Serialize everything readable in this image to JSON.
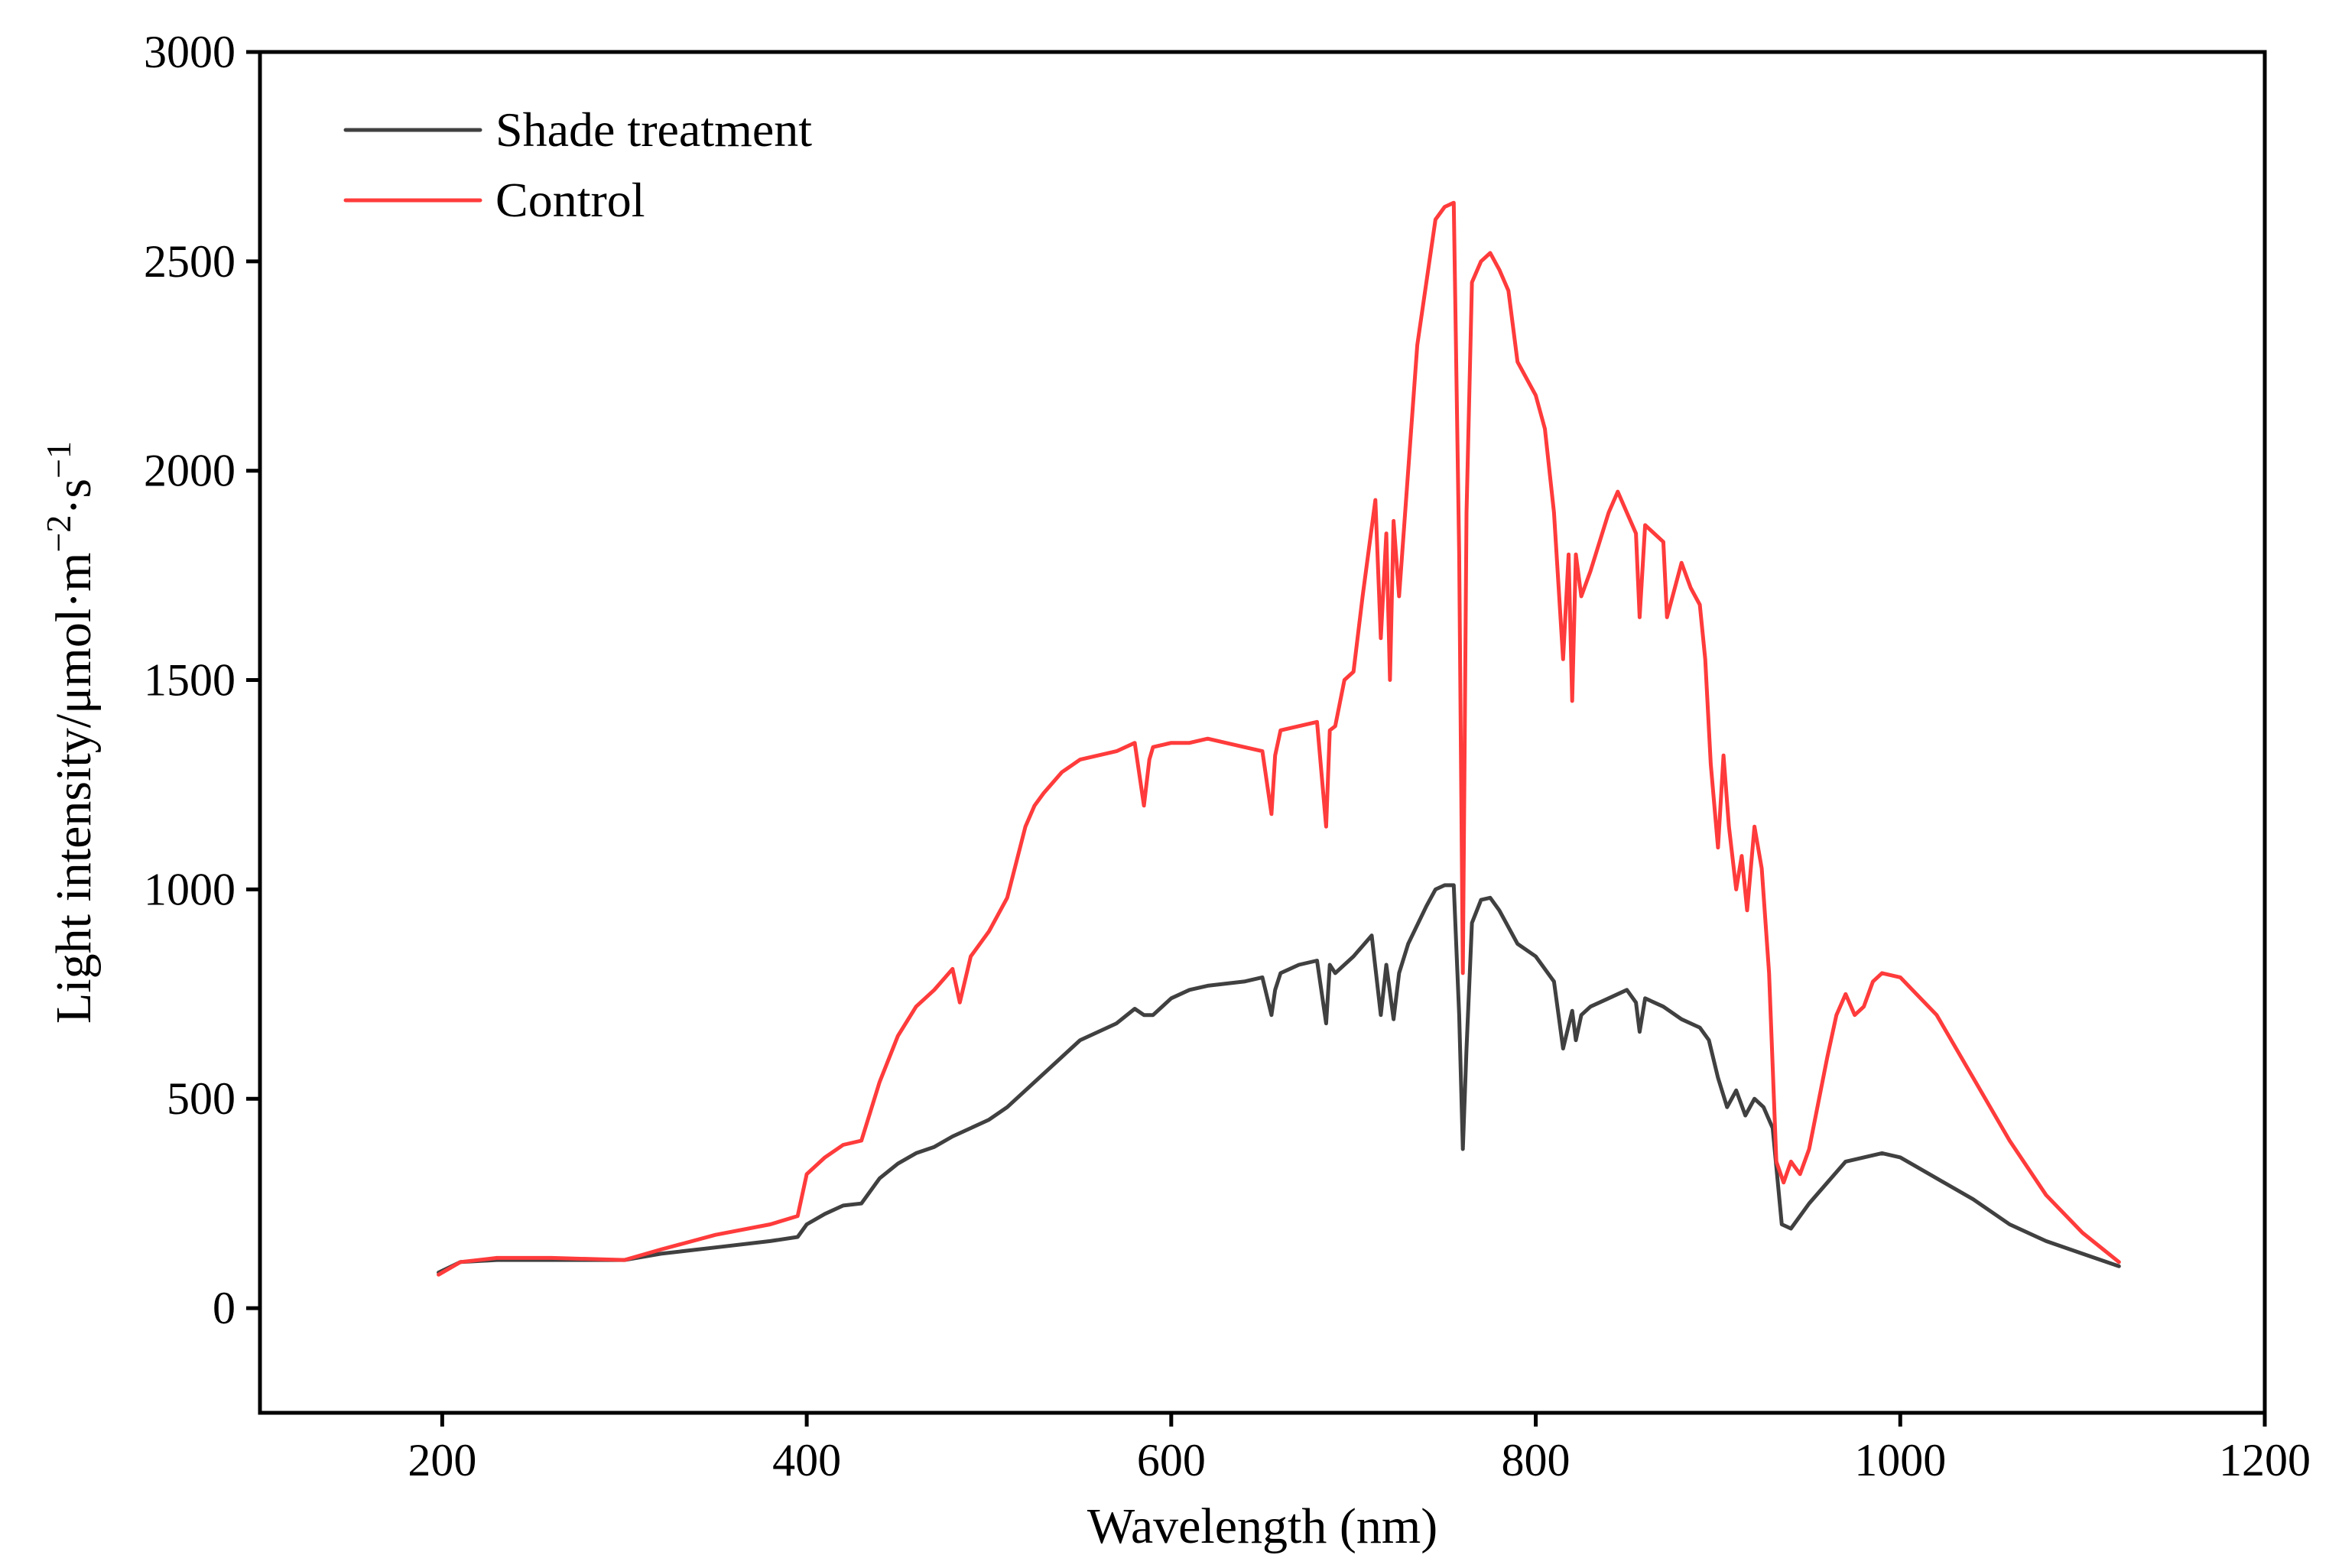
{
  "chart_data": {
    "type": "line",
    "title": "",
    "xlabel": "Wavelength (nm)",
    "ylabel": "Light intensity/μmol·m",
    "ylabel_exp1": "−2",
    "ylabel_mid": "·s",
    "ylabel_exp2": "−1",
    "xlim": [
      100,
      1200
    ],
    "ylim": [
      -250,
      3000
    ],
    "xticks": [
      200,
      400,
      600,
      800,
      1000,
      1200
    ],
    "yticks": [
      0,
      500,
      1000,
      1500,
      2000,
      2500,
      3000
    ],
    "grid": false,
    "legend_position": "top-left",
    "series": [
      {
        "name": "Shade treatment",
        "color": "#404040",
        "x": [
          198,
          210,
          230,
          260,
          300,
          320,
          350,
          380,
          395,
          400,
          410,
          420,
          430,
          440,
          450,
          460,
          470,
          480,
          490,
          500,
          510,
          520,
          530,
          540,
          550,
          560,
          570,
          580,
          585,
          590,
          600,
          610,
          620,
          630,
          640,
          650,
          655,
          657,
          660,
          670,
          680,
          685,
          687,
          690,
          700,
          710,
          715,
          718,
          722,
          725,
          730,
          740,
          745,
          750,
          755,
          758,
          760,
          762,
          765,
          770,
          775,
          780,
          790,
          800,
          810,
          815,
          820,
          822,
          825,
          830,
          840,
          850,
          855,
          857,
          860,
          870,
          880,
          890,
          895,
          900,
          905,
          910,
          915,
          920,
          925,
          930,
          935,
          940,
          950,
          960,
          970,
          980,
          990,
          1000,
          1020,
          1040,
          1060,
          1080,
          1100,
          1120
        ],
        "y": [
          85,
          110,
          115,
          115,
          115,
          130,
          145,
          160,
          170,
          200,
          225,
          245,
          250,
          310,
          345,
          370,
          385,
          410,
          430,
          450,
          480,
          520,
          560,
          600,
          640,
          660,
          680,
          715,
          700,
          700,
          740,
          760,
          770,
          775,
          780,
          790,
          700,
          760,
          800,
          820,
          830,
          680,
          820,
          800,
          840,
          890,
          700,
          820,
          690,
          800,
          870,
          960,
          1000,
          1010,
          1010,
          700,
          380,
          620,
          920,
          975,
          980,
          950,
          870,
          840,
          780,
          620,
          710,
          640,
          700,
          720,
          740,
          760,
          730,
          660,
          740,
          720,
          690,
          670,
          640,
          550,
          480,
          520,
          460,
          500,
          480,
          430,
          200,
          190,
          250,
          300,
          350,
          360,
          370,
          360,
          310,
          260,
          200,
          160,
          130,
          100
        ]
      },
      {
        "name": "Control",
        "color": "#ff3b3b",
        "x": [
          198,
          210,
          230,
          260,
          300,
          320,
          350,
          380,
          395,
          400,
          410,
          420,
          430,
          440,
          450,
          460,
          470,
          480,
          484,
          490,
          500,
          510,
          520,
          525,
          530,
          540,
          550,
          560,
          570,
          580,
          585,
          588,
          590,
          600,
          610,
          620,
          630,
          640,
          650,
          655,
          657,
          660,
          670,
          680,
          685,
          687,
          690,
          695,
          700,
          705,
          712,
          715,
          718,
          720,
          722,
          725,
          730,
          735,
          740,
          745,
          750,
          755,
          758,
          760,
          762,
          765,
          770,
          775,
          780,
          785,
          790,
          800,
          805,
          810,
          815,
          818,
          820,
          822,
          825,
          830,
          840,
          845,
          850,
          855,
          857,
          860,
          870,
          872,
          880,
          885,
          890,
          893,
          896,
          900,
          903,
          906,
          910,
          913,
          916,
          920,
          924,
          928,
          932,
          936,
          940,
          945,
          950,
          960,
          965,
          970,
          975,
          980,
          985,
          990,
          1000,
          1020,
          1040,
          1060,
          1080,
          1100,
          1120
        ],
        "y": [
          80,
          110,
          120,
          120,
          115,
          140,
          175,
          200,
          220,
          320,
          360,
          390,
          400,
          540,
          650,
          720,
          760,
          810,
          730,
          840,
          900,
          980,
          1150,
          1200,
          1230,
          1280,
          1310,
          1320,
          1330,
          1350,
          1200,
          1310,
          1340,
          1350,
          1350,
          1360,
          1350,
          1340,
          1330,
          1180,
          1320,
          1380,
          1390,
          1400,
          1150,
          1380,
          1390,
          1500,
          1520,
          1700,
          1930,
          1600,
          1850,
          1500,
          1880,
          1700,
          2000,
          2300,
          2450,
          2600,
          2630,
          2640,
          1800,
          800,
          1900,
          2450,
          2500,
          2520,
          2480,
          2430,
          2260,
          2180,
          2100,
          1900,
          1550,
          1800,
          1450,
          1800,
          1700,
          1760,
          1900,
          1950,
          1900,
          1850,
          1650,
          1870,
          1830,
          1650,
          1780,
          1720,
          1680,
          1550,
          1300,
          1100,
          1320,
          1150,
          1000,
          1080,
          950,
          1150,
          1050,
          800,
          350,
          300,
          350,
          320,
          380,
          600,
          700,
          750,
          700,
          720,
          780,
          800,
          790,
          700,
          550,
          400,
          270,
          180,
          110
        ]
      }
    ]
  }
}
